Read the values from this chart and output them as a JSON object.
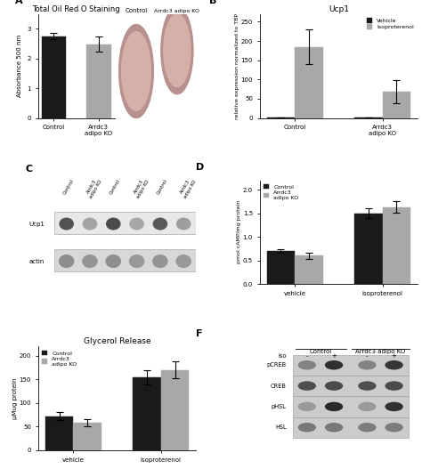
{
  "panel_A": {
    "title": "Total Oil Red O Staining",
    "categories": [
      "Control",
      "Arrdc3\nadipo KO"
    ],
    "values": [
      2.75,
      2.48
    ],
    "errors": [
      0.1,
      0.25
    ],
    "bar_colors": [
      "#1a1a1a",
      "#a8a8a8"
    ],
    "ylabel": "Absorbance 500 nm",
    "ylim": [
      0,
      3.5
    ],
    "yticks": [
      0,
      1,
      2,
      3
    ]
  },
  "panel_B": {
    "title": "Ucp1",
    "groups": [
      "Control",
      "Arrdc3\nadipo KO"
    ],
    "series": [
      "Vehicle",
      "Isoproterenol"
    ],
    "values": [
      [
        1,
        185
      ],
      [
        1,
        68
      ]
    ],
    "errors": [
      [
        0,
        45
      ],
      [
        0,
        30
      ]
    ],
    "bar_colors": [
      "#1a1a1a",
      "#a8a8a8"
    ],
    "ylabel": "relative expression normalized to TBP",
    "ylim": [
      0,
      270
    ],
    "yticks": [
      0,
      50,
      100,
      150,
      200,
      250
    ]
  },
  "panel_C": {
    "col_labels": [
      "Control",
      "Arrdc3\nadipo KO",
      "Control",
      "Arrdc3\nadipo KO",
      "Control",
      "Arrdc3\nadipo KO"
    ],
    "row_labels": [
      "Ucp1",
      "actin"
    ],
    "ucp1_intensities": [
      0.75,
      0.4,
      0.78,
      0.38,
      0.72,
      0.42
    ],
    "actin_intensities": [
      0.55,
      0.52,
      0.55,
      0.5,
      0.52,
      0.5
    ]
  },
  "panel_D": {
    "groups": [
      "vehicle",
      "isoproterenol"
    ],
    "series": [
      "Control",
      "Arrdc3\nadipo KO"
    ],
    "values": [
      [
        0.7,
        0.6
      ],
      [
        1.5,
        1.63
      ]
    ],
    "errors": [
      [
        0.04,
        0.07
      ],
      [
        0.1,
        0.12
      ]
    ],
    "bar_colors": [
      "#1a1a1a",
      "#a8a8a8"
    ],
    "ylabel": "pmol cAMP/mg protein",
    "ylim": [
      0,
      2.2
    ],
    "yticks": [
      0.0,
      0.5,
      1.0,
      1.5,
      2.0
    ]
  },
  "panel_E": {
    "title": "Glycerol Release",
    "groups": [
      "vehicle",
      "isoproterenol"
    ],
    "series": [
      "Control",
      "Arrdc3\nadipo KO"
    ],
    "values": [
      [
        72,
        58
      ],
      [
        155,
        170
      ]
    ],
    "errors": [
      [
        8,
        7
      ],
      [
        15,
        18
      ]
    ],
    "bar_colors": [
      "#1a1a1a",
      "#a8a8a8"
    ],
    "ylabel": "μMug protein",
    "ylim": [
      0,
      220
    ],
    "yticks": [
      0,
      50,
      100,
      150,
      200
    ]
  },
  "panel_F": {
    "col_labels": [
      "Control",
      "Arrdc3 adipo KO"
    ],
    "row_labels": [
      "pCREB",
      "CREB",
      "pHSL",
      "HSL"
    ],
    "iso_signs": [
      "-",
      "+",
      "-",
      "+"
    ],
    "pCREB": [
      0.55,
      0.92,
      0.55,
      0.9
    ],
    "CREB": [
      0.78,
      0.8,
      0.78,
      0.8
    ],
    "pHSL": [
      0.45,
      0.95,
      0.45,
      0.92
    ],
    "HSL": [
      0.6,
      0.6,
      0.58,
      0.58
    ],
    "bg_color": "#c8c8c8",
    "band_dark": "#303030",
    "band_light": "#888888"
  },
  "colors": {
    "black": "#1a1a1a",
    "gray": "#a8a8a8",
    "background": "#ffffff"
  }
}
